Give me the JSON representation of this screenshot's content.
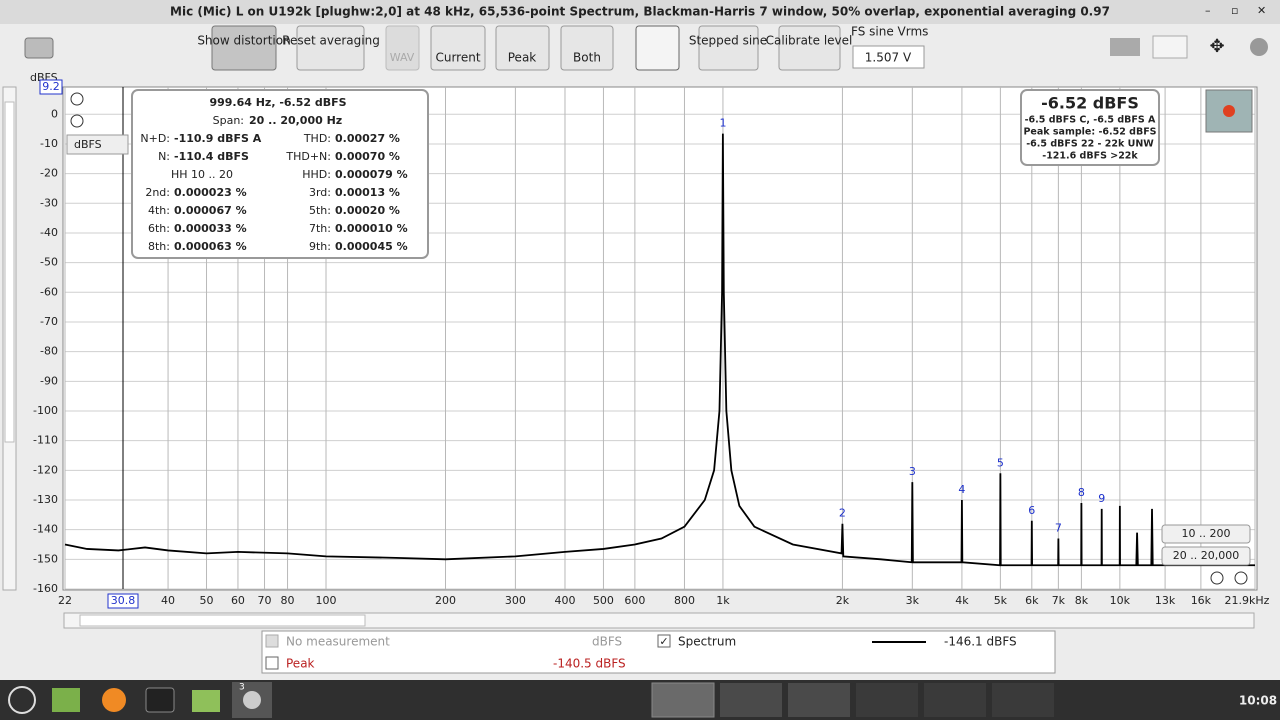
{
  "window_title": "Mic (Mic) L on U192k [plughw:2,0] at 48 kHz, 65,536-point Spectrum, Blackman-Harris 7 window, 50% overlap, exponential averaging 0.97",
  "toolbar": {
    "show_distortion": "Show distortion",
    "reset_averaging": "Reset averaging",
    "wav": "WAV",
    "current": "Current",
    "peak": "Peak",
    "both": "Both",
    "stepped_sine": "Stepped sine",
    "calibrate_level": "Calibrate level",
    "fs_label": "FS sine Vrms",
    "fs_value": "1.507 V"
  },
  "plot_controls": {
    "unit_select": "dBFS",
    "range_a": "10 .. 200",
    "range_b": "20 .. 20,000"
  },
  "info_panel": {
    "header": "999.64 Hz, -6.52 dBFS",
    "span_label": "Span:",
    "span": "20 .. 20,000 Hz",
    "rows": [
      [
        "N+D:",
        "-110.9 dBFS A",
        "THD:",
        "0.00027 %"
      ],
      [
        "N:",
        "-110.4 dBFS",
        "THD+N:",
        "0.00070 %"
      ],
      [
        "HH 10 .. 20",
        "",
        "HHD:",
        "0.000079 %"
      ],
      [
        "2nd:",
        "0.000023 %",
        "3rd:",
        "0.00013 %"
      ],
      [
        "4th:",
        "0.000067 %",
        "5th:",
        "0.00020 %"
      ],
      [
        "6th:",
        "0.000033 %",
        "7th:",
        "0.000010 %"
      ],
      [
        "8th:",
        "0.000063 %",
        "9th:",
        "0.000045 %"
      ]
    ]
  },
  "level_panel": {
    "main": "-6.52 dBFS",
    "lines": [
      "-6.5 dBFS C, -6.5 dBFS A",
      "Peak sample: -6.52 dBFS",
      "-6.5 dBFS 22 - 22k UNW",
      "-121.6 dBFS >22k"
    ]
  },
  "legend": {
    "no_measurement": "No measurement",
    "no_measurement_unit": "dBFS",
    "spectrum_value": "-146.1 dBFS",
    "peak": "Peak",
    "peak_value": "-140.5 dBFS"
  },
  "taskbar": {
    "badge": "3",
    "time": "10:08"
  },
  "chart_data": {
    "type": "line",
    "y_label": "dBFS",
    "log_x": true,
    "grid": true,
    "xlim": [
      22,
      21900
    ],
    "ylim": [
      -160,
      9.2
    ],
    "cursor_x": 30.8,
    "xticks": [
      22,
      40,
      50,
      60,
      70,
      80,
      100,
      200,
      300,
      400,
      500,
      600,
      800,
      {
        "value": 1000,
        "label": "1k"
      },
      {
        "value": 2000,
        "label": "2k"
      },
      {
        "value": 3000,
        "label": "3k"
      },
      {
        "value": 4000,
        "label": "4k"
      },
      {
        "value": 5000,
        "label": "5k"
      },
      {
        "value": 6000,
        "label": "6k"
      },
      {
        "value": 7000,
        "label": "7k"
      },
      {
        "value": 8000,
        "label": "8k"
      },
      {
        "value": 10000,
        "label": "10k"
      },
      {
        "value": 13000,
        "label": "13k"
      },
      {
        "value": 16000,
        "label": "16k"
      },
      {
        "value": 21900,
        "label": "21.9kHz"
      }
    ],
    "yticks": [
      0,
      -10,
      -20,
      -30,
      -40,
      -50,
      -60,
      -70,
      -80,
      -90,
      -100,
      -110,
      -120,
      -130,
      -140,
      -150,
      -160
    ],
    "x": [
      22,
      25,
      30,
      35,
      40,
      50,
      60,
      80,
      100,
      150,
      200,
      300,
      400,
      500,
      600,
      700,
      800,
      900,
      950,
      980,
      995,
      999.64,
      1005,
      1020,
      1050,
      1100,
      1200,
      1500,
      1990,
      2000,
      2010,
      2500,
      2990,
      3000,
      3010,
      3990,
      4000,
      4010,
      4990,
      5000,
      5010,
      5990,
      6000,
      6010,
      6990,
      7000,
      7010,
      7990,
      8000,
      8010,
      8990,
      9000,
      9010,
      9990,
      10000,
      10010,
      11000,
      11050,
      11100,
      12000,
      12050,
      12100,
      15000,
      18000,
      21900
    ],
    "series": [
      {
        "name": "Spectrum",
        "color": "#000000",
        "values": [
          -145,
          -146.5,
          -147,
          -146,
          -147,
          -148,
          -147.5,
          -148,
          -149,
          -149.5,
          -150,
          -149,
          -147.5,
          -146.5,
          -145,
          -143,
          -139,
          -130,
          -120,
          -100,
          -60,
          -6.52,
          -60,
          -100,
          -120,
          -132,
          -139,
          -145,
          -148,
          -138,
          -149,
          -150,
          -151,
          -124,
          -151,
          -151,
          -130,
          -151,
          -152,
          -121,
          -152,
          -152,
          -137,
          -152,
          -152,
          -143,
          -152,
          -152,
          -131,
          -152,
          -152,
          -133,
          -152,
          -152,
          -132,
          -152,
          -152,
          -141,
          -152,
          -152,
          -133,
          -152,
          -152,
          -152,
          -152
        ]
      }
    ],
    "harmonics": [
      {
        "label": "1",
        "x": 1000,
        "y": -6.52
      },
      {
        "label": "2",
        "x": 2000,
        "y": -138
      },
      {
        "label": "3",
        "x": 3000,
        "y": -124
      },
      {
        "label": "4",
        "x": 4000,
        "y": -130
      },
      {
        "label": "5",
        "x": 5000,
        "y": -121
      },
      {
        "label": "6",
        "x": 6000,
        "y": -137
      },
      {
        "label": "7",
        "x": 7000,
        "y": -143
      },
      {
        "label": "8",
        "x": 8000,
        "y": -131
      },
      {
        "label": "9",
        "x": 9000,
        "y": -133
      }
    ]
  }
}
